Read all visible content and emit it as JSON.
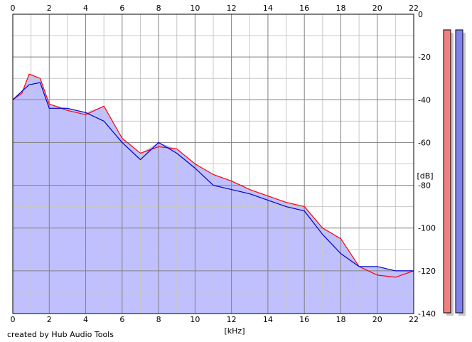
{
  "footer": {
    "credit": "created by Hub Audio Tools"
  },
  "colors": {
    "background": "#ffffff",
    "fill": "#c0c0ff",
    "left_channel": "#ff0000",
    "right_channel": "#0000c8",
    "grid_minor": "#c8c8c8",
    "grid_major": "#808080",
    "meter_left": "#f08080",
    "meter_right": "#8080f0",
    "meter_shadow": "#c8c8c8"
  },
  "chart_data": {
    "type": "line",
    "xlabel": "[kHz]",
    "ylabel": "[dB]",
    "xlim": [
      0,
      22
    ],
    "ylim": [
      -140,
      0
    ],
    "x_ticks": [
      "0",
      "2",
      "4",
      "6",
      "8",
      "10",
      "12",
      "14",
      "16",
      "18",
      "20",
      "22"
    ],
    "y_ticks": [
      "0",
      "-20",
      "-40",
      "-60",
      "-80",
      "-100",
      "-120",
      "-140"
    ],
    "grid": true,
    "series": [
      {
        "color": "#ff0000",
        "x": [
          0,
          0.5,
          0.9,
          1.5,
          2,
          3,
          4,
          5,
          6,
          7,
          8,
          9,
          10,
          11,
          12,
          13,
          14,
          15,
          16,
          17,
          18,
          19,
          20,
          21,
          22
        ],
        "y": [
          -40,
          -37,
          -28,
          -30,
          -42,
          -45,
          -47,
          -43,
          -58,
          -65,
          -62,
          -63,
          -70,
          -75,
          -78,
          -82,
          -85,
          -88,
          -90,
          -100,
          -105,
          -118,
          -122,
          -123,
          -120
        ]
      },
      {
        "color": "#0000c8",
        "x": [
          0,
          0.5,
          0.9,
          1.5,
          2,
          3,
          4,
          5,
          6,
          7,
          8,
          9,
          10,
          11,
          12,
          13,
          14,
          15,
          16,
          17,
          18,
          19,
          20,
          21,
          22
        ],
        "y": [
          -40,
          -36,
          -33,
          -32,
          -44,
          -44,
          -46,
          -50,
          -60,
          -68,
          -60,
          -65,
          -72,
          -80,
          -82,
          -84,
          -87,
          -90,
          -92,
          -103,
          -112,
          -118,
          -118,
          -120,
          -120
        ]
      }
    ],
    "meters": {
      "left_level": 1.0,
      "right_level": 1.0
    }
  }
}
